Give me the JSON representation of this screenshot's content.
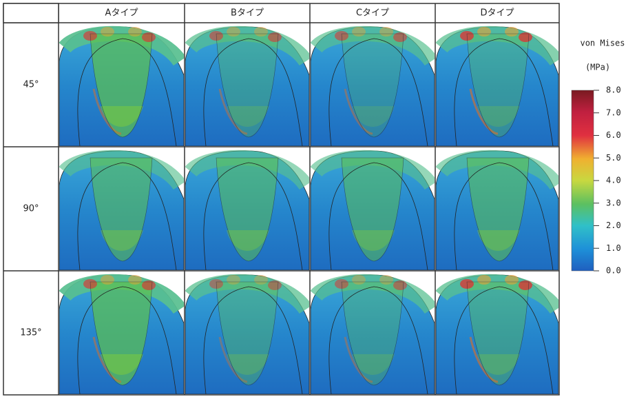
{
  "table": {
    "columns": [
      "Aタイプ",
      "Bタイプ",
      "Cタイプ",
      "Dタイプ"
    ],
    "rows": [
      "45°",
      "90°",
      "135°"
    ]
  },
  "colorbar": {
    "title": "von Mises",
    "unit": "(MPa)",
    "range": [
      0,
      8
    ],
    "ticks": [
      {
        "value": 0,
        "label": "0.0"
      },
      {
        "value": 1,
        "label": "1.0"
      },
      {
        "value": 2,
        "label": "2.0"
      },
      {
        "value": 3,
        "label": "3.0"
      },
      {
        "value": 4,
        "label": "4.0"
      },
      {
        "value": 5,
        "label": "5.0"
      },
      {
        "value": 6,
        "label": "6.0"
      },
      {
        "value": 7,
        "label": "7.0"
      },
      {
        "value": 8,
        "label": "8.0"
      }
    ]
  }
}
